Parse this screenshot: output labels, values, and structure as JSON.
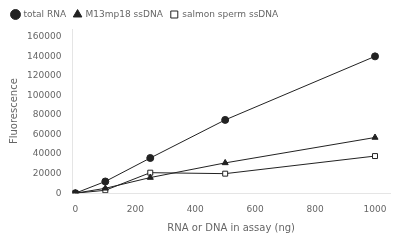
{
  "chart_data": {
    "type": "line",
    "xlabel": "RNA or DNA in assay (ng)",
    "ylabel": "Fluorescence",
    "x": [
      0,
      100,
      250,
      500,
      1000
    ],
    "series": [
      {
        "name": "total RNA",
        "color": "#222222",
        "marker": "circle",
        "values": [
          0,
          12000,
          36000,
          75000,
          140000
        ]
      },
      {
        "name": "M13mp18 ssDNA",
        "color": "#222222",
        "marker": "triangle",
        "values": [
          0,
          5000,
          16000,
          31000,
          57000
        ]
      },
      {
        "name": "salmon sperm ssDNA",
        "color": "#222222",
        "marker": "square-open",
        "values": [
          0,
          3000,
          21000,
          20000,
          38000
        ]
      }
    ],
    "xlim": [
      -10,
      1050
    ],
    "ylim": [
      0,
      168000
    ],
    "xticks": [
      0,
      200,
      400,
      600,
      800,
      1000
    ],
    "yticks": [
      0,
      20000,
      40000,
      60000,
      80000,
      100000,
      120000,
      140000,
      160000
    ],
    "legend": "upper left",
    "grid": false
  }
}
